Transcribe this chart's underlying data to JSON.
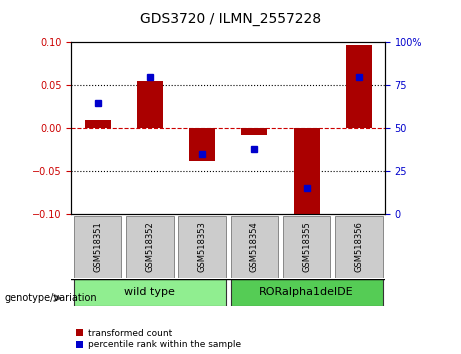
{
  "title": "GDS3720 / ILMN_2557228",
  "samples": [
    "GSM518351",
    "GSM518352",
    "GSM518353",
    "GSM518354",
    "GSM518355",
    "GSM518356"
  ],
  "red_values": [
    0.01,
    0.055,
    -0.038,
    -0.008,
    -0.102,
    0.097
  ],
  "blue_values_pct": [
    65,
    80,
    35,
    38,
    15,
    80
  ],
  "ylim_left": [
    -0.1,
    0.1
  ],
  "ylim_right": [
    0,
    100
  ],
  "yticks_left": [
    -0.1,
    -0.05,
    0,
    0.05,
    0.1
  ],
  "yticks_right": [
    0,
    25,
    50,
    75,
    100
  ],
  "red_color": "#AA0000",
  "blue_color": "#0000CC",
  "group1_label": "wild type",
  "group2_label": "RORalpha1delDE",
  "group1_indices": [
    0,
    1,
    2
  ],
  "group2_indices": [
    3,
    4,
    5
  ],
  "group1_color": "#90EE90",
  "group2_color": "#55CC55",
  "legend_red": "transformed count",
  "legend_blue": "percentile rank within the sample",
  "genotype_label": "genotype/variation",
  "tick_label_color_left": "#CC0000",
  "tick_label_color_right": "#0000CC",
  "bg_color": "#FFFFFF",
  "sample_box_color": "#CCCCCC",
  "bar_width": 0.5
}
